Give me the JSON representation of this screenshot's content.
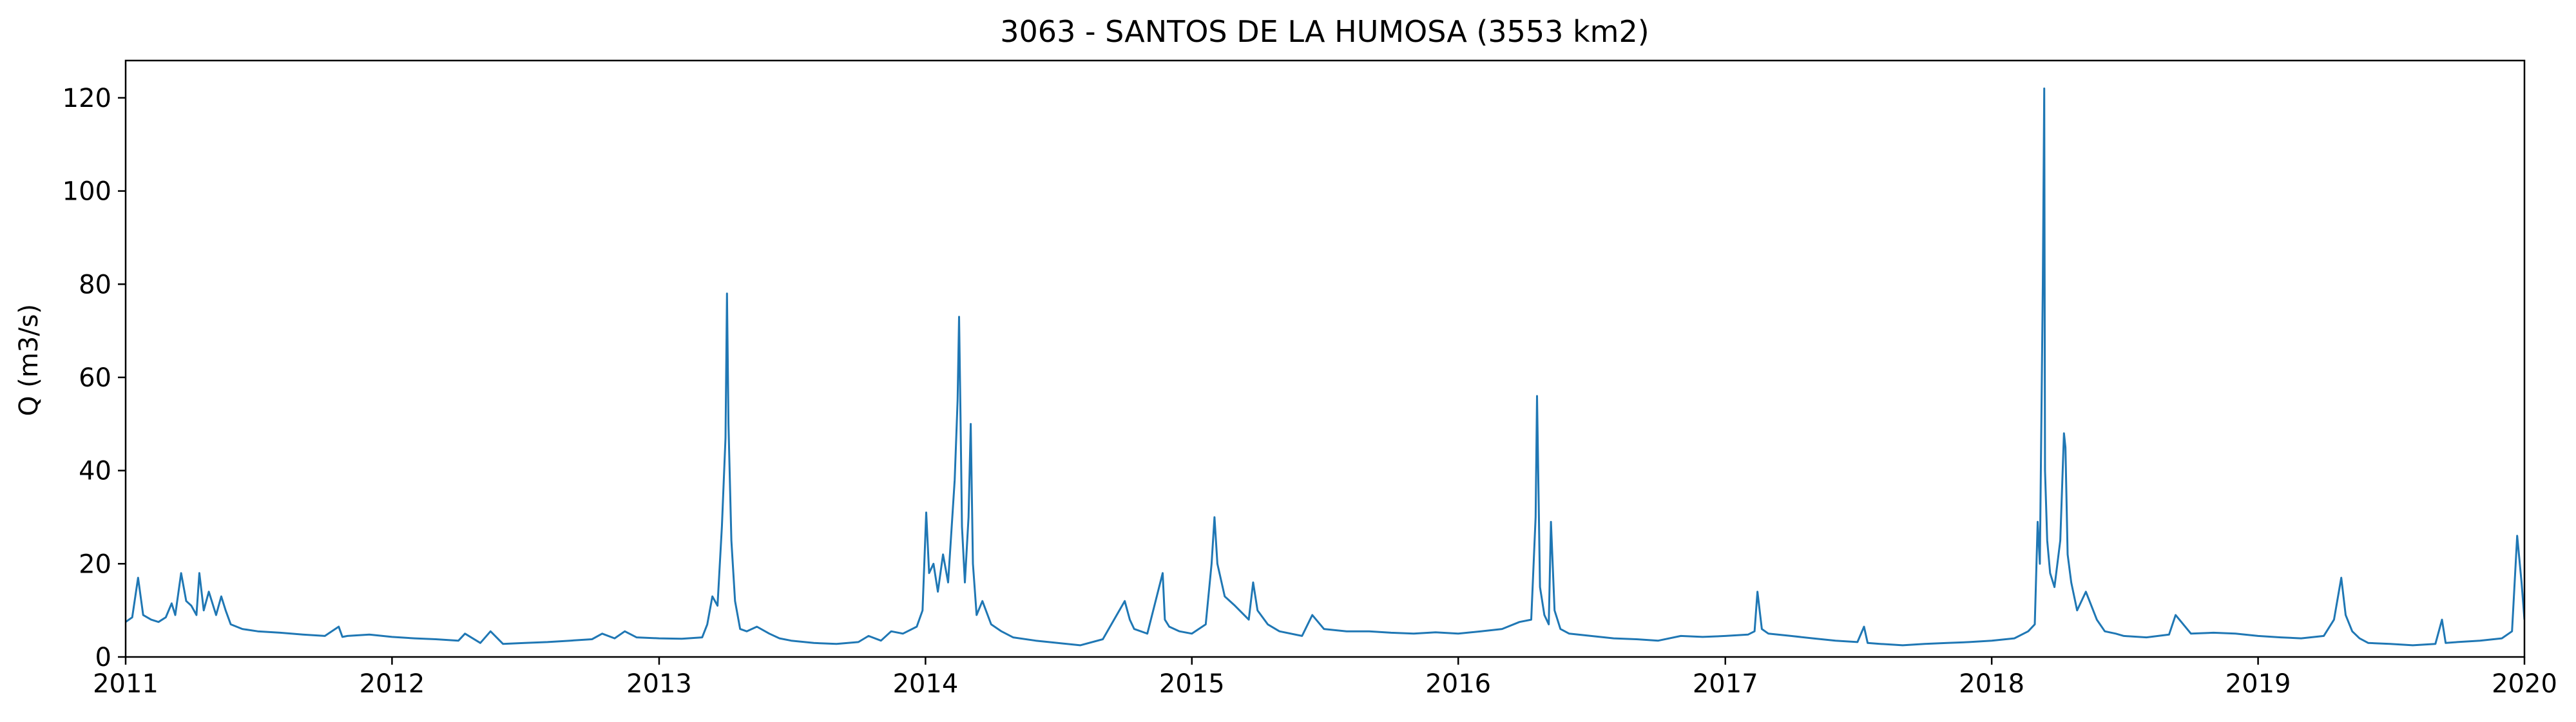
{
  "chart_data": {
    "type": "line",
    "title": "3063 - SANTOS DE LA HUMOSA (3553 km2)",
    "xlabel": "",
    "ylabel": "Q (m3/s)",
    "xlim": [
      "2011-01-01",
      "2020-01-01"
    ],
    "ylim": [
      0,
      128
    ],
    "x_ticks": [
      "2011",
      "2012",
      "2013",
      "2014",
      "2015",
      "2016",
      "2017",
      "2018",
      "2019",
      "2020"
    ],
    "y_ticks": [
      0,
      20,
      40,
      60,
      80,
      100,
      120
    ],
    "grid": false,
    "legend": "none",
    "line_color": "#1f77b4",
    "series": [
      {
        "x": [
          "2011-01-01",
          "2011-01-10",
          "2011-01-18",
          "2011-01-25",
          "2011-02-05",
          "2011-02-15",
          "2011-02-25",
          "2011-03-05",
          "2011-03-10",
          "2011-03-18",
          "2011-03-25",
          "2011-04-01",
          "2011-04-08",
          "2011-04-12",
          "2011-04-18",
          "2011-04-25",
          "2011-05-05",
          "2011-05-12",
          "2011-05-18",
          "2011-05-25",
          "2011-06-10",
          "2011-07-01",
          "2011-08-01",
          "2011-09-01",
          "2011-10-01",
          "2011-10-20",
          "2011-10-25",
          "2011-11-01",
          "2011-12-01",
          "2012-01-01",
          "2012-02-01",
          "2012-03-01",
          "2012-04-01",
          "2012-04-10",
          "2012-05-01",
          "2012-05-15",
          "2012-06-01",
          "2012-07-01",
          "2012-08-01",
          "2012-09-01",
          "2012-10-01",
          "2012-10-15",
          "2012-11-01",
          "2012-11-15",
          "2012-12-01",
          "2013-01-01",
          "2013-02-01",
          "2013-03-01",
          "2013-03-08",
          "2013-03-15",
          "2013-03-22",
          "2013-03-28",
          "2013-04-02",
          "2013-04-04",
          "2013-04-06",
          "2013-04-10",
          "2013-04-15",
          "2013-04-22",
          "2013-05-01",
          "2013-05-15",
          "2013-06-01",
          "2013-06-15",
          "2013-07-01",
          "2013-08-01",
          "2013-09-01",
          "2013-10-01",
          "2013-10-15",
          "2013-11-01",
          "2013-11-15",
          "2013-12-01",
          "2013-12-20",
          "2013-12-28",
          "2014-01-02",
          "2014-01-06",
          "2014-01-12",
          "2014-01-18",
          "2014-01-25",
          "2014-02-01",
          "2014-02-10",
          "2014-02-14",
          "2014-02-16",
          "2014-02-18",
          "2014-02-20",
          "2014-02-24",
          "2014-03-01",
          "2014-03-04",
          "2014-03-07",
          "2014-03-12",
          "2014-03-20",
          "2014-04-01",
          "2014-04-15",
          "2014-05-01",
          "2014-06-01",
          "2014-07-01",
          "2014-08-01",
          "2014-09-01",
          "2014-10-01",
          "2014-10-08",
          "2014-10-14",
          "2014-11-01",
          "2014-11-22",
          "2014-11-25",
          "2014-12-01",
          "2014-12-15",
          "2015-01-01",
          "2015-01-20",
          "2015-01-28",
          "2015-02-01",
          "2015-02-05",
          "2015-02-15",
          "2015-03-01",
          "2015-03-20",
          "2015-03-26",
          "2015-04-01",
          "2015-04-15",
          "2015-05-01",
          "2015-06-01",
          "2015-06-15",
          "2015-07-01",
          "2015-08-01",
          "2015-09-01",
          "2015-10-01",
          "2015-11-01",
          "2015-12-01",
          "2016-01-01",
          "2016-02-01",
          "2016-03-01",
          "2016-03-25",
          "2016-04-10",
          "2016-04-16",
          "2016-04-18",
          "2016-04-22",
          "2016-04-28",
          "2016-05-04",
          "2016-05-07",
          "2016-05-12",
          "2016-05-20",
          "2016-06-01",
          "2016-07-01",
          "2016-08-01",
          "2016-09-01",
          "2016-10-01",
          "2016-11-01",
          "2016-12-01",
          "2017-01-01",
          "2017-02-01",
          "2017-02-10",
          "2017-02-14",
          "2017-02-20",
          "2017-03-01",
          "2017-04-01",
          "2017-05-01",
          "2017-06-01",
          "2017-07-01",
          "2017-07-10",
          "2017-07-15",
          "2017-08-01",
          "2017-09-01",
          "2017-10-01",
          "2017-11-01",
          "2017-12-01",
          "2018-01-01",
          "2018-02-01",
          "2018-02-20",
          "2018-03-01",
          "2018-03-05",
          "2018-03-08",
          "2018-03-12",
          "2018-03-14",
          "2018-03-15",
          "2018-03-18",
          "2018-03-22",
          "2018-03-28",
          "2018-04-05",
          "2018-04-10",
          "2018-04-12",
          "2018-04-15",
          "2018-04-20",
          "2018-04-28",
          "2018-05-10",
          "2018-05-25",
          "2018-06-05",
          "2018-06-20",
          "2018-07-01",
          "2018-08-01",
          "2018-09-01",
          "2018-09-10",
          "2018-10-01",
          "2018-11-01",
          "2018-12-01",
          "2019-01-01",
          "2019-02-01",
          "2019-03-01",
          "2019-04-01",
          "2019-04-15",
          "2019-04-25",
          "2019-05-01",
          "2019-05-10",
          "2019-05-20",
          "2019-06-01",
          "2019-07-01",
          "2019-08-01",
          "2019-09-01",
          "2019-09-10",
          "2019-09-15",
          "2019-10-01",
          "2019-11-01",
          "2019-12-01",
          "2019-12-15",
          "2019-12-22",
          "2019-12-28",
          "2020-01-01"
        ],
        "values": [
          7.5,
          8.5,
          17,
          9,
          8,
          7.5,
          8.5,
          11.5,
          9,
          18,
          12,
          11,
          9,
          18,
          10,
          14,
          9,
          13,
          10,
          7,
          6,
          5.5,
          5.2,
          4.8,
          4.5,
          6.5,
          4.3,
          4.5,
          4.8,
          4.3,
          4.0,
          3.8,
          3.5,
          5.0,
          3.0,
          5.5,
          2.8,
          3.0,
          3.2,
          3.5,
          3.8,
          5.0,
          4.0,
          5.5,
          4.2,
          4.0,
          3.9,
          4.2,
          7,
          13,
          11,
          28,
          47,
          78,
          50,
          25,
          12,
          6,
          5.5,
          6.5,
          5.0,
          4.0,
          3.5,
          3.0,
          2.8,
          3.2,
          4.5,
          3.5,
          5.5,
          5.0,
          6.5,
          10,
          31,
          18,
          20,
          14,
          22,
          16,
          38,
          55,
          73,
          52,
          28,
          16,
          30,
          50,
          20,
          9,
          12,
          7,
          5.5,
          4.2,
          3.5,
          3.0,
          2.5,
          3.8,
          12,
          8,
          6,
          5.0,
          18,
          8,
          6.5,
          5.5,
          5.0,
          7,
          20,
          30,
          20,
          13,
          11,
          8,
          16,
          10,
          7,
          5.5,
          4.5,
          9,
          6,
          5.5,
          5.5,
          5.2,
          5.0,
          5.3,
          5.0,
          5.5,
          6.0,
          7.5,
          8.0,
          30,
          56,
          15,
          9,
          7,
          29,
          10,
          6,
          5.0,
          4.5,
          4.0,
          3.8,
          3.5,
          4.5,
          4.3,
          4.5,
          4.8,
          5.5,
          14,
          6,
          5.0,
          4.5,
          4.0,
          3.5,
          3.2,
          6.5,
          3.0,
          2.8,
          2.5,
          2.8,
          3.0,
          3.2,
          3.5,
          4.0,
          5.5,
          7,
          29,
          20,
          80,
          122,
          40,
          25,
          18,
          15,
          25,
          48,
          45,
          22,
          16,
          10,
          14,
          8,
          5.5,
          5.0,
          4.5,
          4.2,
          4.8,
          9,
          5.0,
          5.2,
          5.0,
          4.5,
          4.2,
          4.0,
          4.5,
          8,
          17,
          9,
          5.5,
          4.0,
          3.0,
          2.8,
          2.5,
          2.8,
          8,
          3.0,
          3.2,
          3.5,
          4.0,
          5.5,
          26,
          16,
          8
        ]
      }
    ]
  }
}
